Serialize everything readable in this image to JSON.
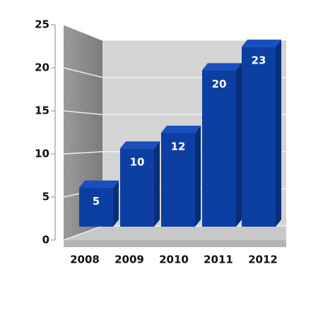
{
  "chart_data": {
    "type": "bar",
    "categories": [
      "2008",
      "2009",
      "2010",
      "2011",
      "2012"
    ],
    "values": [
      5,
      10,
      12,
      20,
      23
    ],
    "color": "#0d3fa3",
    "ylim": [
      0,
      25
    ],
    "yticks": [
      0,
      5,
      10,
      15,
      20,
      25
    ],
    "grid": true
  }
}
